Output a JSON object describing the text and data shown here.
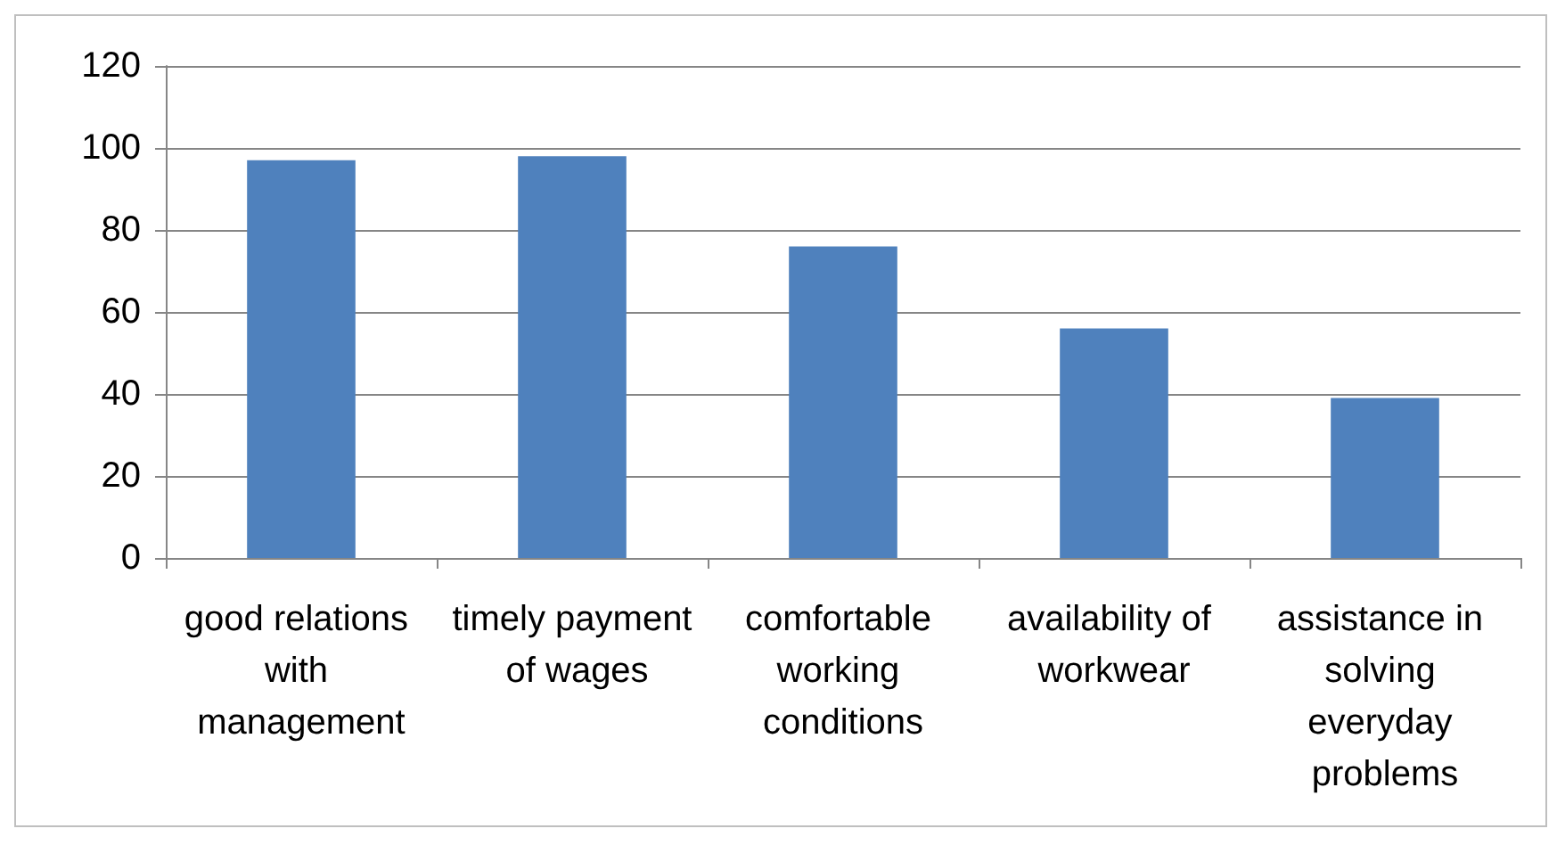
{
  "chart_data": {
    "type": "bar",
    "categories": [
      "good relations with management",
      "timely payment of wages",
      "comfortable working conditions",
      "availability of workwear",
      "assistance in solving everyday problems"
    ],
    "values": [
      97,
      98,
      76,
      56,
      39
    ],
    "color": "#4f81bd",
    "ylim": [
      0,
      120
    ],
    "yticks": [
      0,
      20,
      40,
      60,
      80,
      100,
      120
    ],
    "grid": "y"
  }
}
